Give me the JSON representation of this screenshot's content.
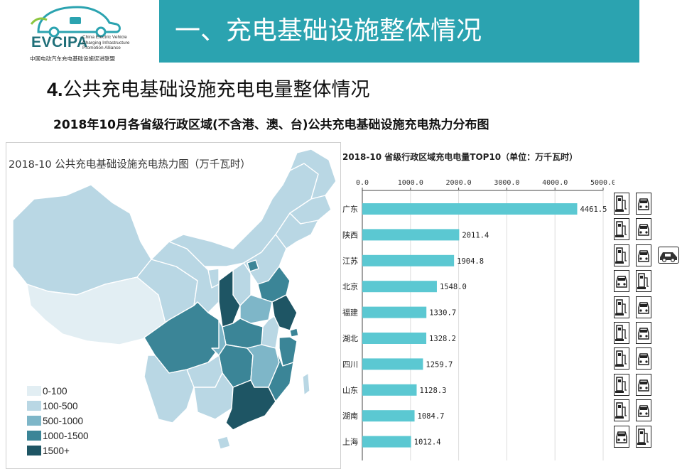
{
  "logo": {
    "name": "EVCIPA",
    "en_lines": [
      "China Electric Vehicle",
      "Charging Infrastructure",
      "Promotion Alliance"
    ],
    "cn": "中国电动汽车充电基础设施促进联盟"
  },
  "header": {
    "title": "一、充电基础设施整体情况"
  },
  "section": {
    "number": "4.",
    "title": "公共充电基础设施充电电量整体情况"
  },
  "subtitle": "2018年10月各省级行政区域(不含港、澳、台)公共充电基础设施充电热力分布图",
  "map": {
    "title": "2018-10 公共充电基础设施充电热力图（万千瓦时）",
    "legend": [
      {
        "label": "0-100",
        "color": "#e2eef3"
      },
      {
        "label": "100-500",
        "color": "#b9d7e4"
      },
      {
        "label": "500-1000",
        "color": "#7eb6c8"
      },
      {
        "label": "1000-1500",
        "color": "#3b8597"
      },
      {
        "label": "1500+",
        "color": "#1e5564"
      }
    ]
  },
  "chart_data": {
    "type": "bar",
    "title": "2018-10 省级行政区域充电电量TOP10（单位：万千瓦时）",
    "categories": [
      "广东",
      "陕西",
      "江苏",
      "北京",
      "福建",
      "湖北",
      "四川",
      "山东",
      "湖南",
      "上海"
    ],
    "values": [
      4461.5,
      2011.4,
      1904.8,
      1548.0,
      1330.7,
      1328.2,
      1259.7,
      1128.3,
      1084.7,
      1012.4
    ],
    "value_labels": [
      "4461.5",
      "2011.4",
      "1904.8",
      "1548.0",
      "1330.7",
      "1328.2",
      "1259.7",
      "1128.3",
      "1084.7",
      "1012.4"
    ],
    "xticks": [
      "0.0",
      "1000.0",
      "2000.0",
      "3000.0",
      "4000.0",
      "5000.0"
    ],
    "xlim": [
      0,
      5000
    ],
    "orientation": "horizontal",
    "bar_color": "#5bc8d2",
    "grid": true
  },
  "icons": {
    "rows": [
      [
        "charging-station-icon",
        "car-front-icon"
      ],
      [
        "charging-station-icon",
        "car-front-icon"
      ],
      [
        "charging-station-icon",
        "car-front-icon",
        "car-side-icon"
      ],
      [
        "car-front-icon",
        "charging-station-icon"
      ],
      [
        "charging-station-icon",
        "car-front-icon"
      ],
      [
        "charging-station-icon",
        "car-front-icon"
      ],
      [
        "charging-station-icon",
        "car-front-icon"
      ],
      [
        "charging-station-icon",
        "car-front-icon"
      ],
      [
        "charging-station-icon",
        "car-front-icon"
      ],
      [
        "car-front-icon",
        "charging-station-icon"
      ]
    ]
  }
}
